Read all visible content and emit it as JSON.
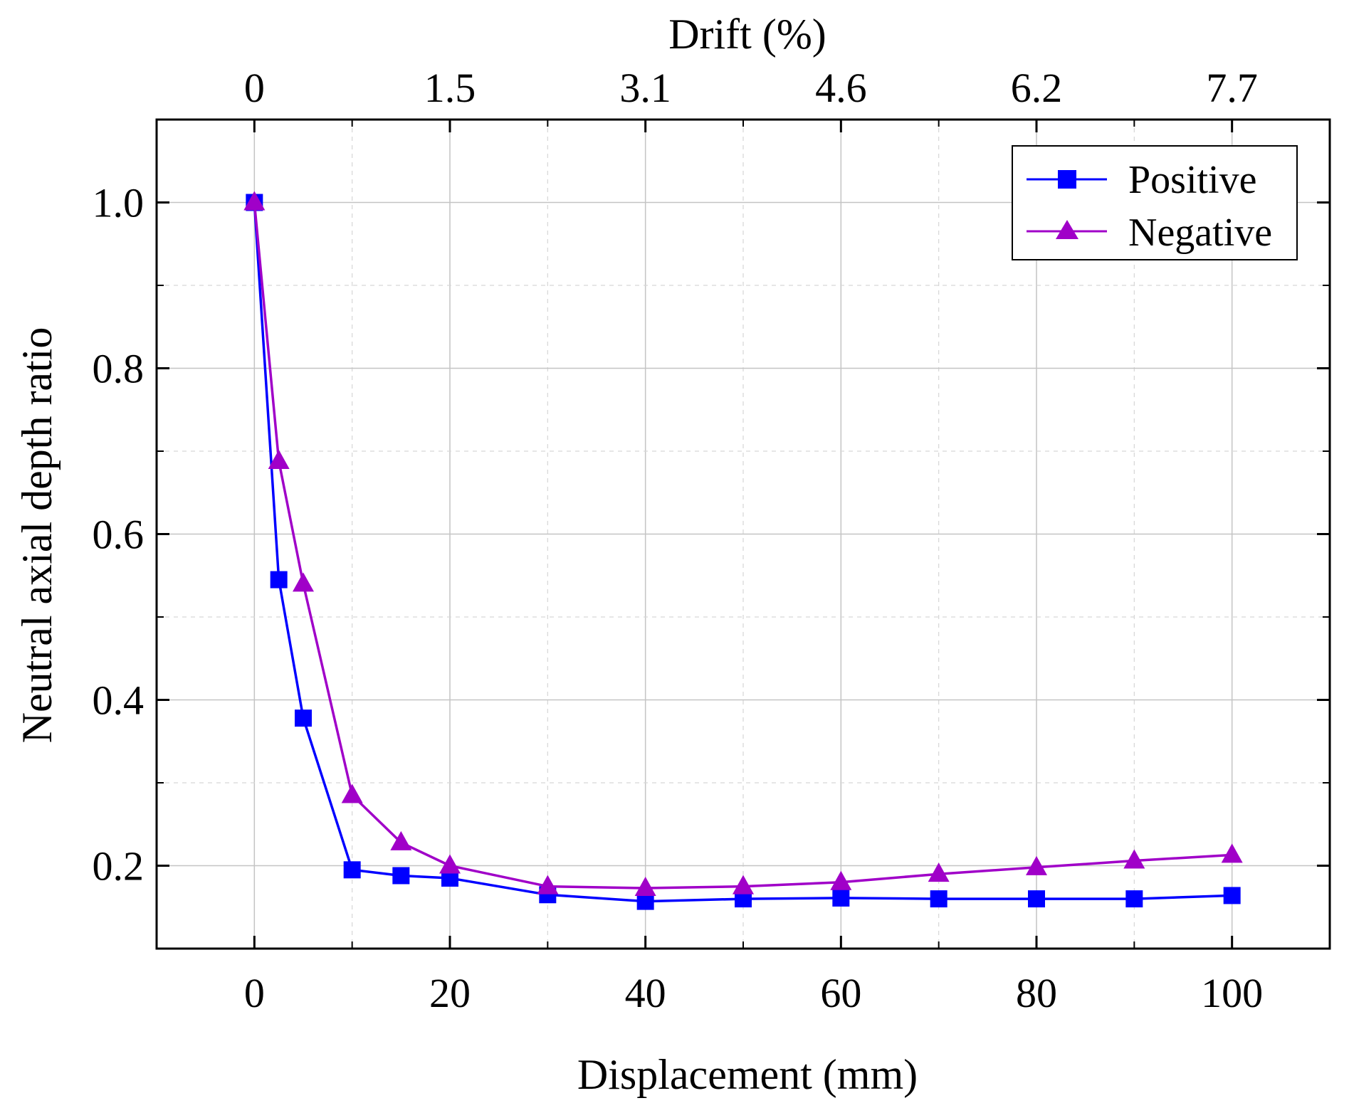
{
  "chart_data": {
    "type": "line",
    "title": "",
    "xlabel": "Displacement (mm)",
    "ylabel": "Neutral axial depth ratio",
    "top_axis": {
      "label": "Drift (%)",
      "ticks": [
        {
          "at": 0,
          "label": "0"
        },
        {
          "at": 20,
          "label": "1.5"
        },
        {
          "at": 40,
          "label": "3.1"
        },
        {
          "at": 60,
          "label": "4.6"
        },
        {
          "at": 80,
          "label": "6.2"
        },
        {
          "at": 100,
          "label": "7.7"
        }
      ]
    },
    "xlim": [
      -10,
      110
    ],
    "ylim": [
      0.1,
      1.1
    ],
    "xticks": [
      0,
      20,
      40,
      60,
      80,
      100
    ],
    "xtick_labels": [
      "0",
      "20",
      "40",
      "60",
      "80",
      "100"
    ],
    "x_minor_ticks": [
      10,
      30,
      50,
      70,
      90
    ],
    "yticks": [
      0.2,
      0.4,
      0.6,
      0.8,
      1.0
    ],
    "ytick_labels": [
      "0.2",
      "0.4",
      "0.6",
      "0.8",
      "1.0"
    ],
    "y_minor_ticks": [
      0.3,
      0.5,
      0.7,
      0.9
    ],
    "grid": true,
    "legend_position": "top-right",
    "series": [
      {
        "name": "Positive",
        "color": "#0000FF",
        "marker": "square",
        "x": [
          0,
          2.5,
          5,
          10,
          15,
          20,
          30,
          40,
          50,
          60,
          70,
          80,
          90,
          100
        ],
        "y": [
          1.0,
          0.545,
          0.378,
          0.195,
          0.188,
          0.185,
          0.165,
          0.157,
          0.16,
          0.161,
          0.16,
          0.16,
          0.16,
          0.164
        ]
      },
      {
        "name": "Negative",
        "color": "#A000C8",
        "marker": "triangle",
        "x": [
          0,
          2.5,
          5,
          10,
          15,
          20,
          30,
          40,
          50,
          60,
          70,
          80,
          90,
          100
        ],
        "y": [
          1.0,
          0.688,
          0.54,
          0.285,
          0.228,
          0.2,
          0.175,
          0.173,
          0.175,
          0.18,
          0.19,
          0.198,
          0.206,
          0.213
        ]
      }
    ]
  }
}
